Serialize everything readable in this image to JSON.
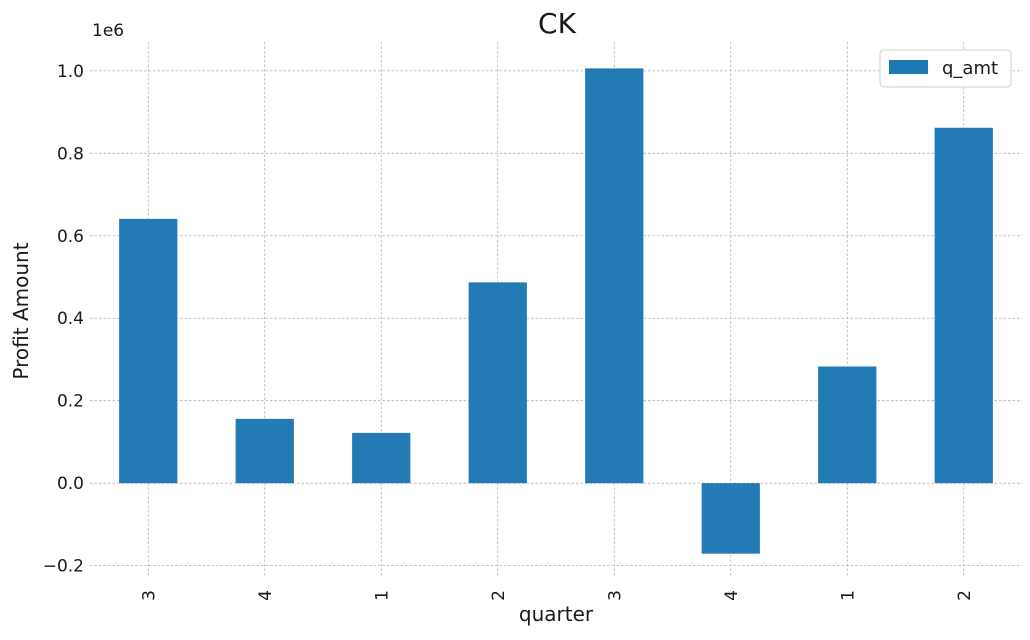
{
  "chart_data": {
    "type": "bar",
    "title": "CK",
    "xlabel": "quarter",
    "ylabel": "Profit Amount",
    "y_offset_label": "1e6",
    "categories": [
      "3",
      "4",
      "1",
      "2",
      "3",
      "4",
      "1",
      "2"
    ],
    "series": [
      {
        "name": "q_amt",
        "values": [
          641000,
          156000,
          122000,
          487000,
          1006000,
          -171000,
          283000,
          862000
        ]
      }
    ],
    "ylim": [
      -0.23,
      1.07
    ],
    "yticks": [
      -0.2,
      0.0,
      0.2,
      0.4,
      0.6,
      0.8,
      1.0
    ],
    "ytick_labels": [
      "−0.2",
      "0.0",
      "0.2",
      "0.4",
      "0.6",
      "0.8",
      "1.0"
    ],
    "y_scale_factor": 1000000,
    "grid": true,
    "legend": "top-right",
    "colors": {
      "bar": "#1f77b4"
    }
  }
}
